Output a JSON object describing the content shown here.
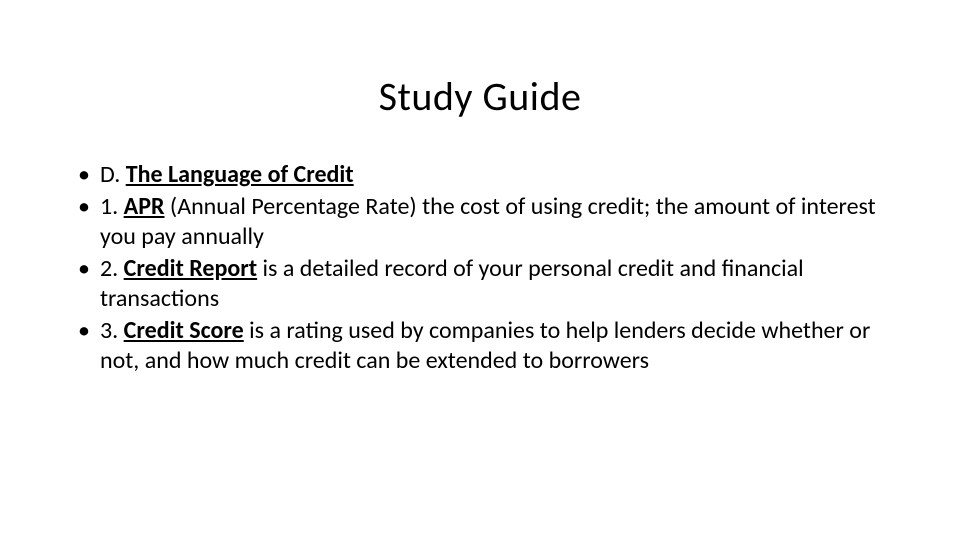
{
  "title": "Study Guide",
  "colors": {
    "background": "#ffffff",
    "text": "#000000"
  },
  "typography": {
    "title_fontsize_pt": 40,
    "title_font_family": "Calibri Light",
    "title_font_weight": 300,
    "body_fontsize_pt": 24,
    "body_font_family": "Calibri",
    "body_line_height": 1.25
  },
  "bullets": [
    {
      "prefix": "D. ",
      "term": "The Language of Credit",
      "rest": ""
    },
    {
      "prefix": "1. ",
      "term": "APR",
      "rest": " (Annual Percentage Rate) the cost of using  credit; the amount of interest you pay annually"
    },
    {
      "prefix": "2. ",
      "term": "Credit Report",
      "rest": " is a detailed record of your  personal credit and financial transactions"
    },
    {
      "prefix": "3. ",
      "term": "Credit Score",
      "rest": " is a rating used by companies to  help lenders decide whether or not, and how  much credit can be extended to borrowers"
    }
  ]
}
